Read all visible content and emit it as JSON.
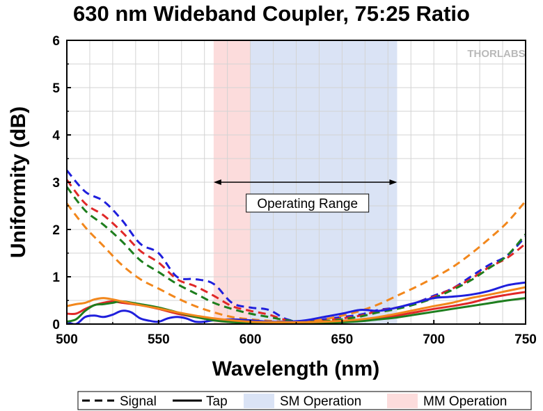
{
  "chart_data": {
    "type": "line",
    "title": "630 nm Wideband Coupler, 75:25 Ratio",
    "xlabel": "Wavelength (nm)",
    "ylabel": "Uniformity (dB)",
    "xlim": [
      500,
      750
    ],
    "ylim": [
      0,
      6
    ],
    "x_ticks": [
      "500",
      "550",
      "600",
      "650",
      "700",
      "750"
    ],
    "y_ticks": [
      "0",
      "1",
      "2",
      "3",
      "4",
      "5",
      "6"
    ],
    "grid": true,
    "watermark": "THORLABS",
    "regions": [
      {
        "name": "MM Operation",
        "x": [
          580,
          600
        ],
        "color": "#fcdcdc"
      },
      {
        "name": "SM Operation",
        "x": [
          600,
          680
        ],
        "color": "#dae3f5"
      }
    ],
    "annotation": {
      "text": "Operating Range",
      "x": [
        580,
        680
      ],
      "y": 3.0
    },
    "legend": {
      "position": "bottom",
      "items": [
        {
          "label": "Signal",
          "kind": "dashed"
        },
        {
          "label": "Tap",
          "kind": "solid"
        },
        {
          "label": "SM Operation",
          "kind": "patch",
          "color": "#dae3f5"
        },
        {
          "label": "MM Operation",
          "kind": "patch",
          "color": "#fcdcdc"
        }
      ]
    },
    "series": [
      {
        "style": "dashed",
        "color": "#1f1fdc",
        "x": [
          500,
          510,
          520,
          530,
          540,
          550,
          560,
          570,
          580,
          590,
          600,
          610,
          620,
          630,
          640,
          650,
          660,
          670,
          680,
          690,
          700,
          710,
          720,
          730,
          740,
          750
        ],
        "y": [
          3.25,
          2.8,
          2.6,
          2.2,
          1.7,
          1.5,
          1.0,
          0.95,
          0.85,
          0.45,
          0.35,
          0.3,
          0.1,
          0.05,
          0.1,
          0.15,
          0.2,
          0.3,
          0.35,
          0.45,
          0.6,
          0.75,
          1.0,
          1.25,
          1.45,
          1.85
        ]
      },
      {
        "style": "dashed",
        "color": "#e02828",
        "x": [
          500,
          510,
          520,
          530,
          540,
          550,
          560,
          570,
          580,
          590,
          600,
          610,
          620,
          630,
          640,
          650,
          660,
          670,
          680,
          690,
          700,
          710,
          720,
          730,
          740,
          750
        ],
        "y": [
          3.05,
          2.55,
          2.3,
          1.95,
          1.55,
          1.3,
          0.95,
          0.8,
          0.6,
          0.38,
          0.28,
          0.2,
          0.08,
          0.05,
          0.07,
          0.12,
          0.18,
          0.28,
          0.35,
          0.45,
          0.58,
          0.75,
          0.95,
          1.2,
          1.4,
          1.7
        ]
      },
      {
        "style": "dashed",
        "color": "#1e7e1e",
        "x": [
          500,
          510,
          520,
          530,
          540,
          550,
          560,
          570,
          580,
          590,
          600,
          610,
          620,
          630,
          640,
          650,
          660,
          670,
          680,
          690,
          700,
          710,
          720,
          730,
          740,
          750
        ],
        "y": [
          2.9,
          2.4,
          2.1,
          1.75,
          1.35,
          1.1,
          0.85,
          0.65,
          0.45,
          0.32,
          0.22,
          0.15,
          0.08,
          0.05,
          0.06,
          0.1,
          0.16,
          0.25,
          0.32,
          0.42,
          0.55,
          0.72,
          0.92,
          1.18,
          1.45,
          1.9
        ]
      },
      {
        "style": "dashed",
        "color": "#f2871c",
        "x": [
          500,
          510,
          520,
          530,
          540,
          550,
          560,
          570,
          580,
          590,
          600,
          610,
          620,
          630,
          640,
          650,
          660,
          670,
          680,
          690,
          700,
          710,
          720,
          730,
          740,
          750
        ],
        "y": [
          2.55,
          2.05,
          1.65,
          1.25,
          0.95,
          0.75,
          0.55,
          0.38,
          0.25,
          0.15,
          0.1,
          0.07,
          0.05,
          0.06,
          0.1,
          0.18,
          0.28,
          0.42,
          0.6,
          0.78,
          0.98,
          1.2,
          1.48,
          1.8,
          2.15,
          2.6
        ]
      },
      {
        "style": "solid",
        "color": "#1f1fdc",
        "x": [
          500,
          505,
          510,
          515,
          520,
          525,
          530,
          535,
          540,
          545,
          550,
          555,
          560,
          565,
          570,
          575,
          580,
          590,
          600,
          610,
          620,
          630,
          640,
          650,
          660,
          670,
          680,
          690,
          700,
          710,
          720,
          730,
          740,
          750
        ],
        "y": [
          0.05,
          0.0,
          0.15,
          0.18,
          0.15,
          0.2,
          0.28,
          0.25,
          0.12,
          0.07,
          0.05,
          0.12,
          0.15,
          0.12,
          0.05,
          0.05,
          0.08,
          0.1,
          0.08,
          0.05,
          0.05,
          0.08,
          0.15,
          0.22,
          0.3,
          0.28,
          0.35,
          0.45,
          0.55,
          0.58,
          0.62,
          0.7,
          0.82,
          0.88
        ]
      },
      {
        "style": "solid",
        "color": "#e02828",
        "x": [
          500,
          505,
          510,
          515,
          520,
          525,
          530,
          540,
          550,
          560,
          570,
          580,
          590,
          600,
          610,
          620,
          630,
          640,
          650,
          660,
          670,
          680,
          690,
          700,
          710,
          720,
          730,
          740,
          750
        ],
        "y": [
          0.22,
          0.22,
          0.32,
          0.4,
          0.45,
          0.48,
          0.45,
          0.4,
          0.32,
          0.22,
          0.15,
          0.1,
          0.05,
          0.03,
          0.03,
          0.03,
          0.03,
          0.04,
          0.05,
          0.08,
          0.12,
          0.18,
          0.25,
          0.32,
          0.38,
          0.45,
          0.55,
          0.62,
          0.68
        ]
      },
      {
        "style": "solid",
        "color": "#1e7e1e",
        "x": [
          500,
          505,
          510,
          515,
          520,
          525,
          530,
          540,
          550,
          560,
          570,
          580,
          590,
          600,
          610,
          620,
          630,
          640,
          650,
          660,
          670,
          680,
          690,
          700,
          710,
          720,
          730,
          740,
          750
        ],
        "y": [
          0.05,
          0.1,
          0.28,
          0.4,
          0.42,
          0.45,
          0.48,
          0.42,
          0.35,
          0.25,
          0.15,
          0.08,
          0.04,
          0.03,
          0.03,
          0.03,
          0.03,
          0.03,
          0.04,
          0.06,
          0.1,
          0.14,
          0.2,
          0.26,
          0.32,
          0.38,
          0.44,
          0.5,
          0.55
        ]
      },
      {
        "style": "solid",
        "color": "#f2871c",
        "x": [
          500,
          505,
          510,
          515,
          520,
          525,
          530,
          540,
          550,
          560,
          570,
          580,
          590,
          600,
          610,
          620,
          630,
          640,
          650,
          660,
          670,
          680,
          690,
          700,
          710,
          720,
          730,
          740,
          750
        ],
        "y": [
          0.38,
          0.42,
          0.45,
          0.52,
          0.55,
          0.52,
          0.48,
          0.4,
          0.33,
          0.25,
          0.18,
          0.12,
          0.08,
          0.05,
          0.04,
          0.04,
          0.04,
          0.05,
          0.07,
          0.1,
          0.15,
          0.22,
          0.3,
          0.38,
          0.45,
          0.55,
          0.62,
          0.7,
          0.78
        ]
      }
    ]
  }
}
